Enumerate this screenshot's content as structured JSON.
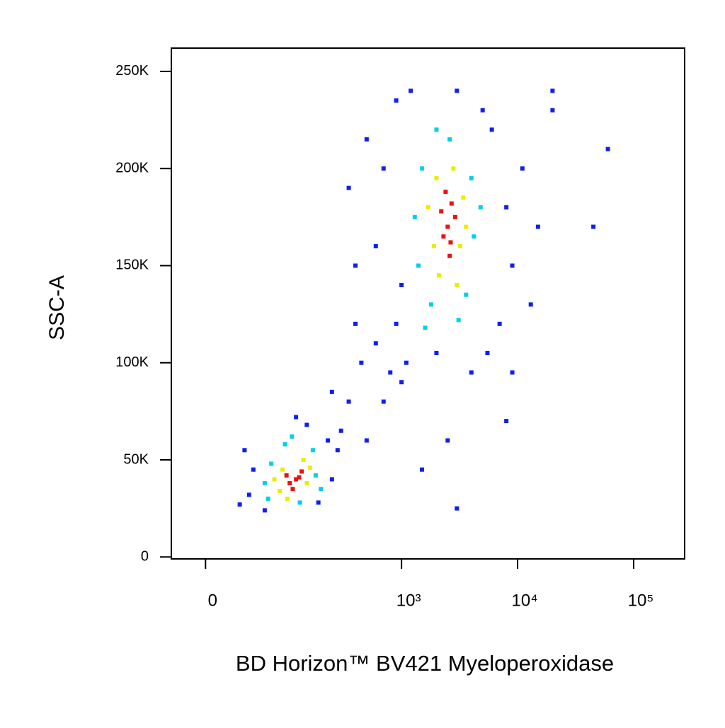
{
  "chart_data": {
    "type": "scatter",
    "xlabel": "BD Horizon™ BV421 Myeloperoxidase",
    "ylabel": "SSC-A",
    "xscale": "asinh",
    "xlim": [
      -30,
      275000
    ],
    "xticks": [
      0,
      {
        "value": 1000,
        "label": "10³"
      },
      {
        "value": 10000,
        "label": "10⁴"
      },
      {
        "value": 100000,
        "label": "10⁵"
      }
    ],
    "ylim": [
      -1000,
      262000
    ],
    "yticks": [
      0,
      {
        "value": 50000,
        "label": "50K"
      },
      {
        "value": 100000,
        "label": "100K"
      },
      {
        "value": 150000,
        "label": "150K"
      },
      {
        "value": 200000,
        "label": "200K"
      },
      {
        "value": 250000,
        "label": "250K"
      }
    ],
    "series": [
      {
        "color": "#1020f0",
        "x": [
          40,
          45,
          250,
          230,
          150,
          60,
          190,
          35,
          280,
          120,
          30,
          350,
          450,
          600,
          300,
          800,
          250,
          500,
          1000,
          900,
          700,
          400,
          700,
          600,
          8000,
          9000,
          6000,
          900,
          1200,
          5000,
          7000,
          2000,
          5500,
          1000,
          11000,
          15000,
          20000,
          60000,
          45000,
          350,
          400,
          3000,
          1100,
          4000,
          500,
          13000,
          9000,
          2500,
          1500,
          8000,
          3000,
          20000
        ],
        "y": [
          32000,
          45000,
          40000,
          60000,
          68000,
          24000,
          28000,
          55000,
          55000,
          72000,
          27000,
          80000,
          100000,
          110000,
          65000,
          95000,
          85000,
          60000,
          90000,
          120000,
          80000,
          120000,
          200000,
          160000,
          180000,
          150000,
          220000,
          235000,
          240000,
          230000,
          120000,
          105000,
          105000,
          140000,
          200000,
          170000,
          240000,
          210000,
          170000,
          190000,
          150000,
          240000,
          100000,
          95000,
          215000,
          130000,
          95000,
          60000,
          45000,
          70000,
          25000,
          230000
        ]
      },
      {
        "color": "#00d2e6",
        "x": [
          60,
          70,
          180,
          170,
          95,
          130,
          65,
          200,
          110,
          1500,
          4200,
          1400,
          4000,
          2600,
          1800,
          3600,
          1300,
          4800,
          2000,
          3100,
          1600
        ],
        "y": [
          38000,
          48000,
          42000,
          55000,
          58000,
          28000,
          30000,
          35000,
          62000,
          200000,
          165000,
          150000,
          195000,
          215000,
          130000,
          135000,
          175000,
          180000,
          220000,
          122000,
          118000
        ]
      },
      {
        "color": "#e6f000",
        "x": [
          90,
          150,
          140,
          85,
          100,
          160,
          75,
          2000,
          3200,
          1900,
          3400,
          2800,
          2100,
          3000,
          1700,
          3600
        ],
        "y": [
          45000,
          38000,
          50000,
          34000,
          30000,
          46000,
          40000,
          195000,
          160000,
          160000,
          185000,
          200000,
          145000,
          140000,
          180000,
          170000
        ]
      },
      {
        "color": "#f01010",
        "x": [
          120,
          105,
          135,
          112,
          128,
          98,
          2500,
          2700,
          2300,
          2600,
          2900,
          2400,
          2650,
          2200
        ],
        "y": [
          40000,
          38000,
          44000,
          35000,
          41000,
          42000,
          170000,
          182000,
          165000,
          155000,
          175000,
          188000,
          162000,
          178000
        ]
      }
    ]
  }
}
